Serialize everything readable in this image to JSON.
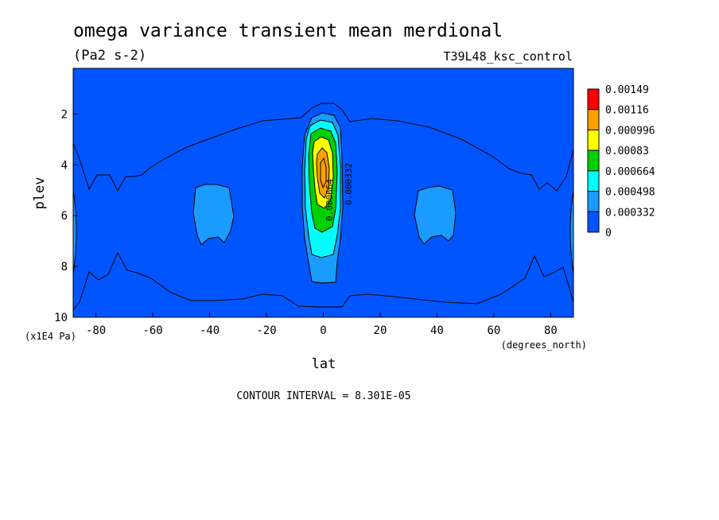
{
  "chart_data": {
    "type": "contour",
    "title": "omega variance transient mean merdional",
    "units": "(Pa2 s-2)",
    "dataset": "T39L48_ksc_control",
    "xlabel": "lat",
    "x_units": "(degrees_north)",
    "ylabel": "plev",
    "y_units": "(x1E4 Pa)",
    "xlim": [
      -88,
      88
    ],
    "ylim": [
      10,
      0.2
    ],
    "x_ticks": [
      "-80",
      "-60",
      "-40",
      "-20",
      "0",
      "20",
      "40",
      "60",
      "80"
    ],
    "y_ticks": [
      "2",
      "4",
      "6",
      "8",
      "10"
    ],
    "contour_interval_text": "CONTOUR INTERVAL = 8.301E-05",
    "contour_levels": [
      "0",
      "0.000332",
      "0.000498",
      "0.000664",
      "0.00083",
      "0.000996",
      "0.00116",
      "0.00149"
    ],
    "level_colors": [
      "#0055ff",
      "#1a9bff",
      "#00ffff",
      "#00d000",
      "#ffff00",
      "#ffa000",
      "#ff0000"
    ],
    "inline_labels": [
      "0.000664",
      "0.000332"
    ],
    "grid": false,
    "legend_position": "right"
  }
}
